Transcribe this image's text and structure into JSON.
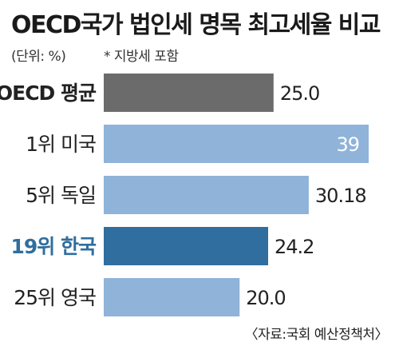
{
  "title": "OECD국가 법인세 명목 최고세율 비교",
  "unit": "(단위: %)",
  "note": "* 지방세 포함",
  "source": "〈자료:국회 예산정책처〉",
  "colors": {
    "oecd_bar": "#6b6b6b",
    "bar": "#8fb3d9",
    "highlight_bar": "#2f6e9e",
    "highlight_label": "#2f6e9e",
    "label": "#222222"
  },
  "chart_data": {
    "type": "bar",
    "orientation": "horizontal",
    "title": "OECD국가 법인세 명목 최고세율 비교",
    "categories": [
      "OECD 평균",
      "1위 미국",
      "5위 독일",
      "19위 한국",
      "25위 영국"
    ],
    "values": [
      25.0,
      39,
      30.18,
      24.2,
      20.0
    ],
    "value_labels": [
      "25.0",
      "39",
      "30.18",
      "24.2",
      "20.0"
    ],
    "highlight": "19위 한국",
    "xlim": [
      0,
      39
    ],
    "grid": false,
    "legend": "none"
  }
}
